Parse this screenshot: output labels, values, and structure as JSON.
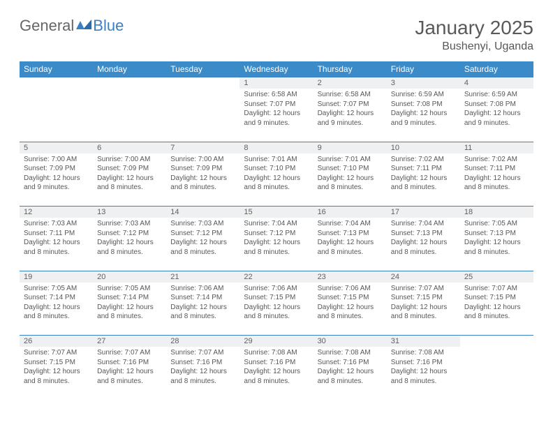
{
  "brand": {
    "part1": "General",
    "part2": "Blue"
  },
  "title": "January 2025",
  "location": "Bushenyi, Uganda",
  "colors": {
    "header_bg": "#3b8bc9",
    "accent": "#3b7fc4",
    "daybar_bg": "#eef0f2",
    "text": "#595959",
    "page_bg": "#ffffff"
  },
  "weekdays": [
    "Sunday",
    "Monday",
    "Tuesday",
    "Wednesday",
    "Thursday",
    "Friday",
    "Saturday"
  ],
  "weeks": [
    [
      null,
      null,
      null,
      {
        "n": "1",
        "sr": "6:58 AM",
        "ss": "7:07 PM",
        "dl": "12 hours and 9 minutes."
      },
      {
        "n": "2",
        "sr": "6:58 AM",
        "ss": "7:07 PM",
        "dl": "12 hours and 9 minutes."
      },
      {
        "n": "3",
        "sr": "6:59 AM",
        "ss": "7:08 PM",
        "dl": "12 hours and 9 minutes."
      },
      {
        "n": "4",
        "sr": "6:59 AM",
        "ss": "7:08 PM",
        "dl": "12 hours and 9 minutes."
      }
    ],
    [
      {
        "n": "5",
        "sr": "7:00 AM",
        "ss": "7:09 PM",
        "dl": "12 hours and 9 minutes."
      },
      {
        "n": "6",
        "sr": "7:00 AM",
        "ss": "7:09 PM",
        "dl": "12 hours and 8 minutes."
      },
      {
        "n": "7",
        "sr": "7:00 AM",
        "ss": "7:09 PM",
        "dl": "12 hours and 8 minutes."
      },
      {
        "n": "8",
        "sr": "7:01 AM",
        "ss": "7:10 PM",
        "dl": "12 hours and 8 minutes."
      },
      {
        "n": "9",
        "sr": "7:01 AM",
        "ss": "7:10 PM",
        "dl": "12 hours and 8 minutes."
      },
      {
        "n": "10",
        "sr": "7:02 AM",
        "ss": "7:11 PM",
        "dl": "12 hours and 8 minutes."
      },
      {
        "n": "11",
        "sr": "7:02 AM",
        "ss": "7:11 PM",
        "dl": "12 hours and 8 minutes."
      }
    ],
    [
      {
        "n": "12",
        "sr": "7:03 AM",
        "ss": "7:11 PM",
        "dl": "12 hours and 8 minutes."
      },
      {
        "n": "13",
        "sr": "7:03 AM",
        "ss": "7:12 PM",
        "dl": "12 hours and 8 minutes."
      },
      {
        "n": "14",
        "sr": "7:03 AM",
        "ss": "7:12 PM",
        "dl": "12 hours and 8 minutes."
      },
      {
        "n": "15",
        "sr": "7:04 AM",
        "ss": "7:12 PM",
        "dl": "12 hours and 8 minutes."
      },
      {
        "n": "16",
        "sr": "7:04 AM",
        "ss": "7:13 PM",
        "dl": "12 hours and 8 minutes."
      },
      {
        "n": "17",
        "sr": "7:04 AM",
        "ss": "7:13 PM",
        "dl": "12 hours and 8 minutes."
      },
      {
        "n": "18",
        "sr": "7:05 AM",
        "ss": "7:13 PM",
        "dl": "12 hours and 8 minutes."
      }
    ],
    [
      {
        "n": "19",
        "sr": "7:05 AM",
        "ss": "7:14 PM",
        "dl": "12 hours and 8 minutes."
      },
      {
        "n": "20",
        "sr": "7:05 AM",
        "ss": "7:14 PM",
        "dl": "12 hours and 8 minutes."
      },
      {
        "n": "21",
        "sr": "7:06 AM",
        "ss": "7:14 PM",
        "dl": "12 hours and 8 minutes."
      },
      {
        "n": "22",
        "sr": "7:06 AM",
        "ss": "7:15 PM",
        "dl": "12 hours and 8 minutes."
      },
      {
        "n": "23",
        "sr": "7:06 AM",
        "ss": "7:15 PM",
        "dl": "12 hours and 8 minutes."
      },
      {
        "n": "24",
        "sr": "7:07 AM",
        "ss": "7:15 PM",
        "dl": "12 hours and 8 minutes."
      },
      {
        "n": "25",
        "sr": "7:07 AM",
        "ss": "7:15 PM",
        "dl": "12 hours and 8 minutes."
      }
    ],
    [
      {
        "n": "26",
        "sr": "7:07 AM",
        "ss": "7:15 PM",
        "dl": "12 hours and 8 minutes."
      },
      {
        "n": "27",
        "sr": "7:07 AM",
        "ss": "7:16 PM",
        "dl": "12 hours and 8 minutes."
      },
      {
        "n": "28",
        "sr": "7:07 AM",
        "ss": "7:16 PM",
        "dl": "12 hours and 8 minutes."
      },
      {
        "n": "29",
        "sr": "7:08 AM",
        "ss": "7:16 PM",
        "dl": "12 hours and 8 minutes."
      },
      {
        "n": "30",
        "sr": "7:08 AM",
        "ss": "7:16 PM",
        "dl": "12 hours and 8 minutes."
      },
      {
        "n": "31",
        "sr": "7:08 AM",
        "ss": "7:16 PM",
        "dl": "12 hours and 8 minutes."
      },
      null
    ]
  ],
  "labels": {
    "sunrise": "Sunrise:",
    "sunset": "Sunset:",
    "daylight": "Daylight:"
  }
}
